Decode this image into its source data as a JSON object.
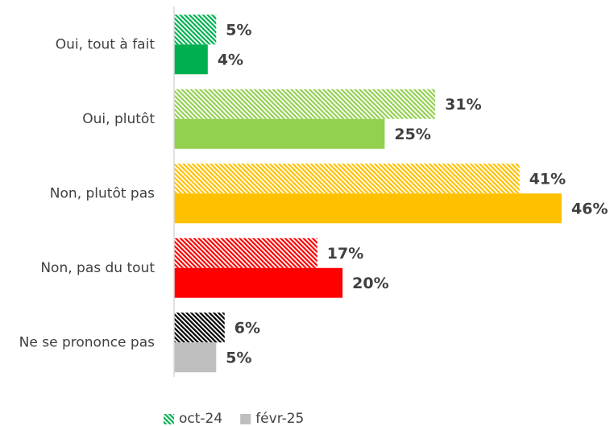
{
  "chart_data": {
    "type": "bar",
    "orientation": "horizontal",
    "categories": [
      "Oui, tout à fait",
      "Oui, plutôt",
      "Non, plutôt pas",
      "Non, pas du tout",
      "Ne se prononce pas"
    ],
    "xlim": [
      0,
      46
    ],
    "series": [
      {
        "name": "oct-24",
        "color": "#00b050",
        "hatched": true,
        "colors": [
          "#00b050",
          "#92d050",
          "#ffc000",
          "#ff0000",
          "#000000"
        ],
        "values": [
          5,
          31,
          41,
          17,
          6
        ],
        "value_labels": [
          "5%",
          "31%",
          "41%",
          "17%",
          "6%"
        ]
      },
      {
        "name": "févr-25",
        "color": "#bfbfbf",
        "hatched": false,
        "colors": [
          "#00b050",
          "#92d050",
          "#ffc000",
          "#ff0000",
          "#bfbfbf"
        ],
        "values": [
          4,
          25,
          46,
          20,
          5
        ],
        "value_labels": [
          "4%",
          "25%",
          "46%",
          "20%",
          "5%"
        ]
      }
    ]
  }
}
